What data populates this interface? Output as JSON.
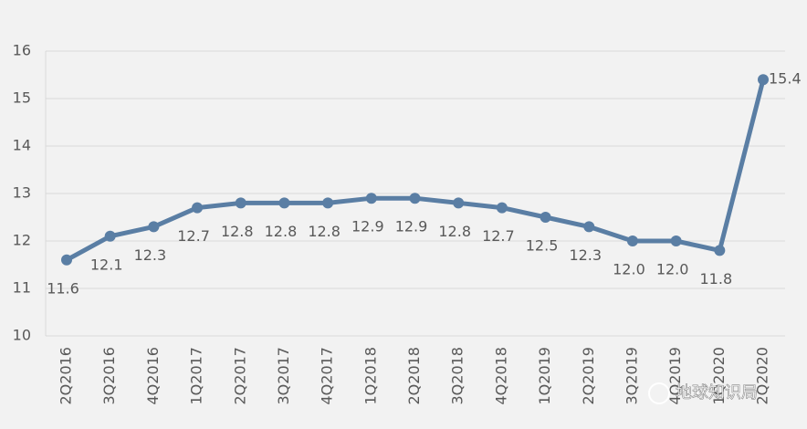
{
  "chart_data": {
    "type": "line",
    "categories": [
      "2Q2016",
      "3Q2016",
      "4Q2016",
      "1Q2017",
      "2Q2017",
      "3Q2017",
      "4Q2017",
      "1Q2018",
      "2Q2018",
      "3Q2018",
      "4Q2018",
      "1Q2019",
      "2Q2019",
      "3Q2019",
      "4Q2019",
      "1Q2020",
      "2Q2020"
    ],
    "values": [
      11.6,
      12.1,
      12.3,
      12.7,
      12.8,
      12.8,
      12.8,
      12.9,
      12.9,
      12.8,
      12.7,
      12.5,
      12.3,
      12.0,
      12.0,
      11.8,
      15.4
    ],
    "value_labels": [
      "11.6",
      "12.1",
      "12.3",
      "12.7",
      "12.8",
      "12.8",
      "12.8",
      "12.9",
      "12.9",
      "12.8",
      "12.7",
      "12.5",
      "12.3",
      "12.0",
      "12.0",
      "11.8",
      "15.4"
    ],
    "color": "#5a7ea4",
    "ylim": [
      10,
      16
    ],
    "yticks": [
      10,
      11,
      12,
      13,
      14,
      15,
      16
    ],
    "grid": true,
    "watermark": "地球知识局"
  }
}
